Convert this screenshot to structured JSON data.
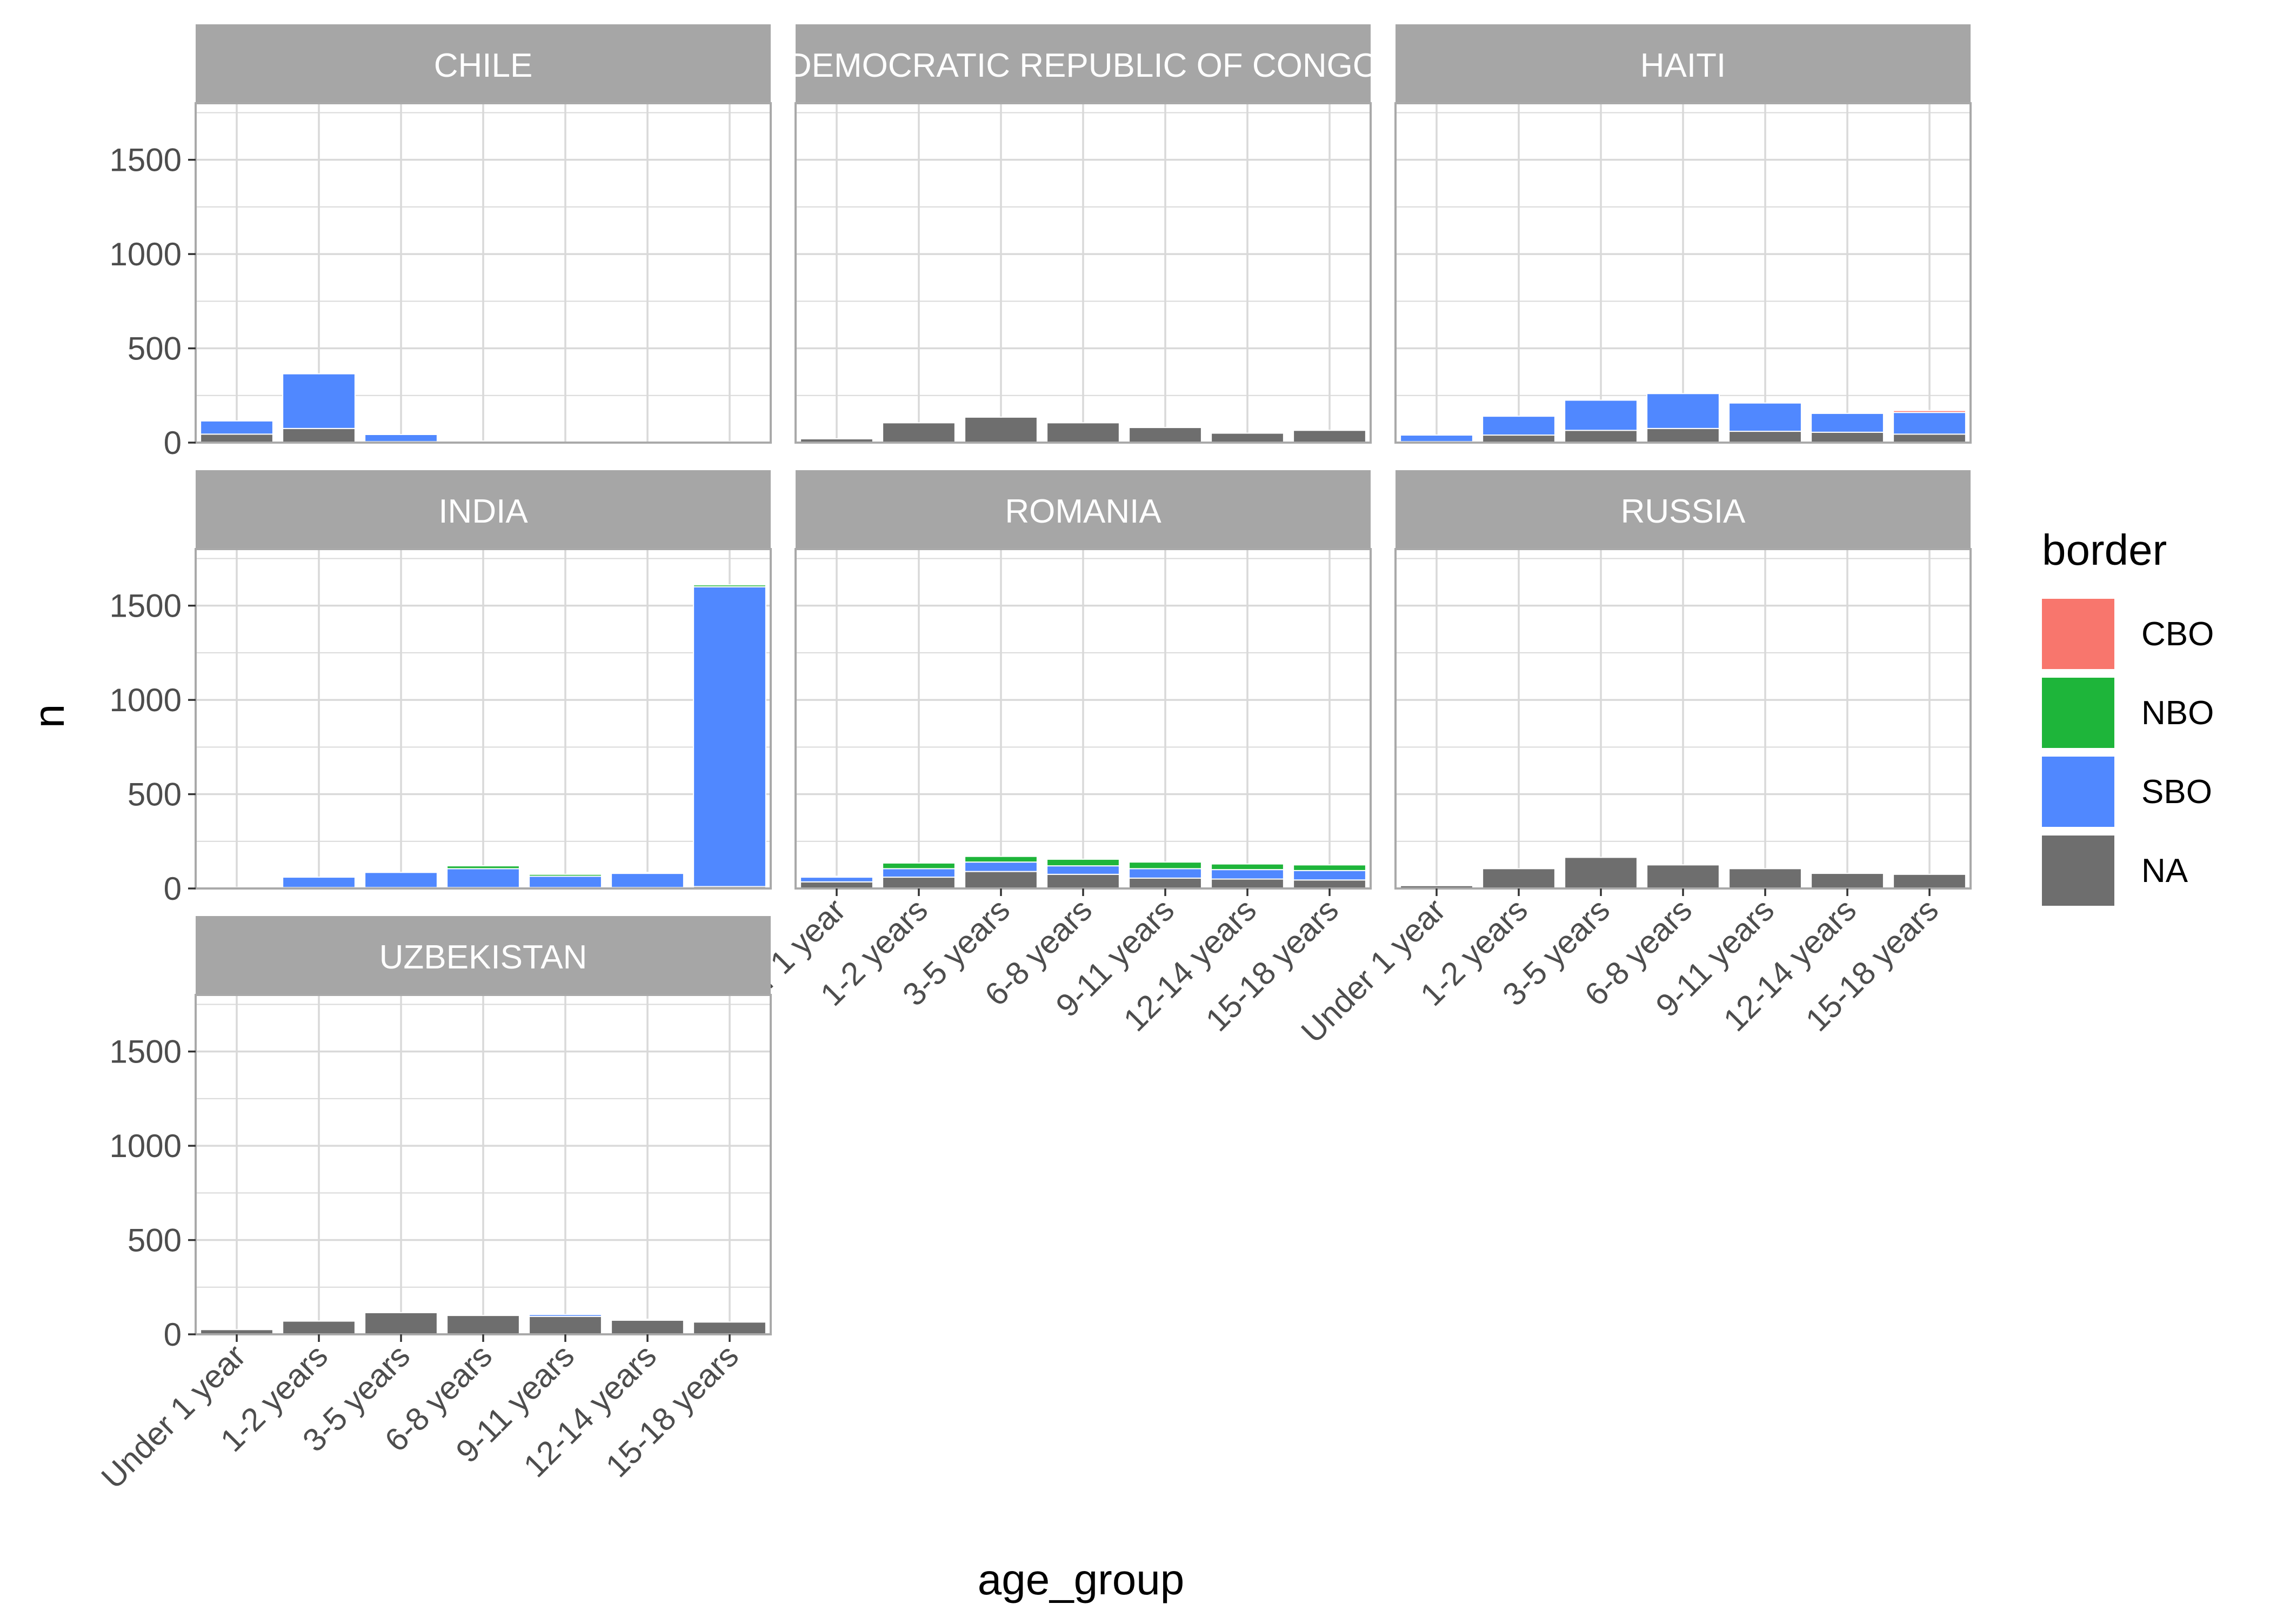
{
  "chart_data": {
    "type": "bar",
    "stacked": true,
    "faceted": true,
    "xlabel": "age_group",
    "ylabel": "n",
    "ylim": [
      0,
      1800
    ],
    "y_ticks": [
      0,
      500,
      1000,
      1500
    ],
    "categories": [
      "Under 1 year",
      "1-2 years",
      "3-5 years",
      "6-8 years",
      "9-11 years",
      "12-14 years",
      "15-18 years"
    ],
    "legend": {
      "title": "border",
      "placement": "right",
      "entries": [
        {
          "label": "CBO",
          "color": "#F8766D"
        },
        {
          "label": "NBO",
          "color": "#1EB53A"
        },
        {
          "label": "SBO",
          "color": "#5088FF"
        },
        {
          "label": "NA",
          "color": "#6E6E6E"
        }
      ]
    },
    "stack_order_bottom_to_top": [
      "NA",
      "SBO",
      "NBO",
      "CBO"
    ],
    "grid": true,
    "panels": [
      {
        "title": "CHILE",
        "series": [
          {
            "name": "NA",
            "values": [
              45,
              75,
              5,
              3,
              1,
              1,
              2
            ]
          },
          {
            "name": "SBO",
            "values": [
              70,
              290,
              38,
              5,
              2,
              1,
              3
            ]
          },
          {
            "name": "NBO",
            "values": [
              0,
              0,
              0,
              0,
              0,
              0,
              0
            ]
          },
          {
            "name": "CBO",
            "values": [
              0,
              0,
              0,
              0,
              0,
              0,
              0
            ]
          }
        ]
      },
      {
        "title": "DEMOCRATIC REPUBLIC OF CONGO",
        "series": [
          {
            "name": "NA",
            "values": [
              20,
              105,
              135,
              105,
              80,
              50,
              65
            ]
          },
          {
            "name": "SBO",
            "values": [
              0,
              0,
              0,
              0,
              0,
              0,
              0
            ]
          },
          {
            "name": "NBO",
            "values": [
              0,
              0,
              0,
              0,
              0,
              0,
              0
            ]
          },
          {
            "name": "CBO",
            "values": [
              0,
              0,
              0,
              0,
              0,
              0,
              0
            ]
          }
        ]
      },
      {
        "title": "HAITI",
        "series": [
          {
            "name": "NA",
            "values": [
              5,
              40,
              65,
              75,
              60,
              55,
              45
            ]
          },
          {
            "name": "SBO",
            "values": [
              35,
              100,
              160,
              185,
              150,
              100,
              115
            ]
          },
          {
            "name": "NBO",
            "values": [
              0,
              0,
              0,
              0,
              0,
              0,
              0
            ]
          },
          {
            "name": "CBO",
            "values": [
              0,
              0,
              0,
              0,
              0,
              0,
              10
            ]
          }
        ]
      },
      {
        "title": "INDIA",
        "series": [
          {
            "name": "NA",
            "values": [
              2,
              5,
              5,
              5,
              5,
              5,
              10
            ]
          },
          {
            "name": "SBO",
            "values": [
              3,
              55,
              80,
              100,
              60,
              75,
              1590
            ]
          },
          {
            "name": "NBO",
            "values": [
              0,
              0,
              0,
              15,
              10,
              5,
              10
            ]
          },
          {
            "name": "CBO",
            "values": [
              0,
              0,
              0,
              0,
              0,
              0,
              0
            ]
          }
        ]
      },
      {
        "title": "ROMANIA",
        "series": [
          {
            "name": "NA",
            "values": [
              35,
              60,
              90,
              75,
              55,
              50,
              45
            ]
          },
          {
            "name": "SBO",
            "values": [
              25,
              45,
              50,
              45,
              50,
              50,
              50
            ]
          },
          {
            "name": "NBO",
            "values": [
              5,
              30,
              30,
              35,
              35,
              30,
              30
            ]
          },
          {
            "name": "CBO",
            "values": [
              0,
              0,
              0,
              0,
              0,
              0,
              0
            ]
          }
        ]
      },
      {
        "title": "RUSSIA",
        "series": [
          {
            "name": "NA",
            "values": [
              15,
              105,
              165,
              125,
              105,
              80,
              75
            ]
          },
          {
            "name": "SBO",
            "values": [
              0,
              0,
              0,
              0,
              0,
              0,
              0
            ]
          },
          {
            "name": "NBO",
            "values": [
              0,
              0,
              0,
              0,
              0,
              0,
              0
            ]
          },
          {
            "name": "CBO",
            "values": [
              0,
              0,
              0,
              0,
              0,
              0,
              0
            ]
          }
        ]
      },
      {
        "title": "UZBEKISTAN",
        "series": [
          {
            "name": "NA",
            "values": [
              25,
              70,
              115,
              100,
              95,
              75,
              65
            ]
          },
          {
            "name": "SBO",
            "values": [
              0,
              0,
              0,
              0,
              10,
              5,
              0
            ]
          },
          {
            "name": "NBO",
            "values": [
              0,
              0,
              0,
              0,
              0,
              0,
              0
            ]
          },
          {
            "name": "CBO",
            "values": [
              0,
              0,
              0,
              0,
              0,
              0,
              0
            ]
          }
        ]
      }
    ]
  }
}
